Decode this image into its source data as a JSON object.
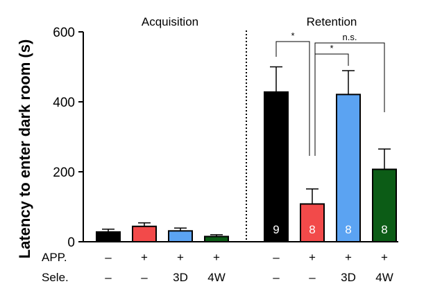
{
  "chart_data": {
    "type": "bar",
    "ylabel": "Latency to enter dark room (s)",
    "ylim": [
      0,
      600
    ],
    "yticks": [
      0,
      200,
      400,
      600
    ],
    "grid": false,
    "panels": [
      {
        "label": "Acquisition"
      },
      {
        "label": "Retention"
      }
    ],
    "row_labels": {
      "app": "APP.",
      "sele": "Sele."
    },
    "bars": [
      {
        "panel": 0,
        "app": "–",
        "sele": "–",
        "value": 28,
        "error": 8,
        "color": "#000000",
        "n": ""
      },
      {
        "panel": 0,
        "app": "+",
        "sele": "–",
        "value": 44,
        "error": 10,
        "color": "#f24a4a",
        "n": ""
      },
      {
        "panel": 0,
        "app": "+",
        "sele": "3D",
        "value": 31,
        "error": 8,
        "color": "#5ba3f2",
        "n": ""
      },
      {
        "panel": 0,
        "app": "+",
        "sele": "4W",
        "value": 15,
        "error": 5,
        "color": "#0c5c16",
        "n": ""
      },
      {
        "panel": 1,
        "app": "–",
        "sele": "–",
        "value": 428,
        "error": 72,
        "color": "#000000",
        "n": "9"
      },
      {
        "panel": 1,
        "app": "+",
        "sele": "–",
        "value": 108,
        "error": 43,
        "color": "#f24a4a",
        "n": "8"
      },
      {
        "panel": 1,
        "app": "+",
        "sele": "3D",
        "value": 421,
        "error": 68,
        "color": "#5ba3f2",
        "n": "8"
      },
      {
        "panel": 1,
        "app": "+",
        "sele": "4W",
        "value": 207,
        "error": 58,
        "color": "#0c5c16",
        "n": "8"
      }
    ],
    "comparisons": [
      {
        "from": 4,
        "to": 5,
        "label": "*"
      },
      {
        "from": 5,
        "to": 6,
        "label": "*"
      },
      {
        "from": 5,
        "to": 7,
        "label": "n.s."
      }
    ]
  }
}
